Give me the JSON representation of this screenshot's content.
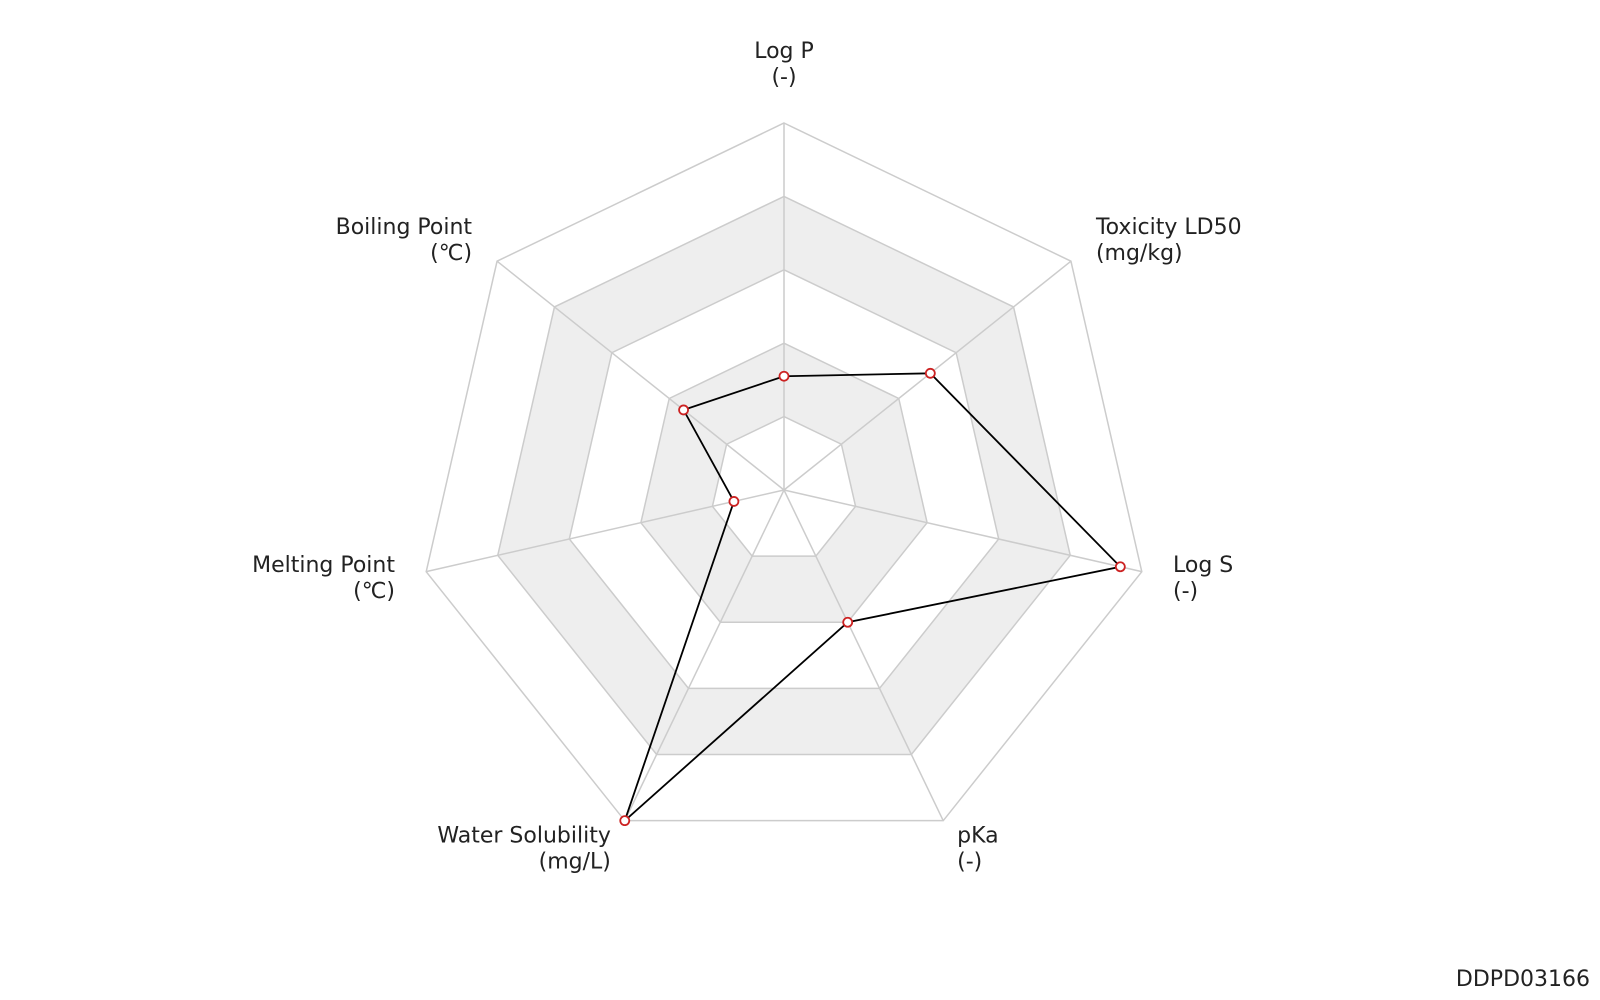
{
  "chart_data": {
    "type": "radar",
    "categories": [
      "Log P",
      "Toxicity LD50",
      "Log S",
      "pKa",
      "Water Solubility",
      "Melting Point",
      "Boiling Point"
    ],
    "units": [
      "(-)",
      "(mg/kg)",
      "(-)",
      "(-)",
      "(mg/L)",
      "(℃)",
      "(℃)"
    ],
    "values": [
      0.31,
      0.51,
      0.94,
      0.4,
      1.0,
      0.14,
      0.35
    ],
    "rlim": [
      0,
      1
    ],
    "rticks": [
      0.2,
      0.4,
      0.6,
      0.8,
      1.0
    ],
    "color": "#000000",
    "marker_color": "#cc2222",
    "grid_color": "#cccccc",
    "band_color": "#eeeeee"
  },
  "footer": {
    "id": "DDPD03166"
  }
}
